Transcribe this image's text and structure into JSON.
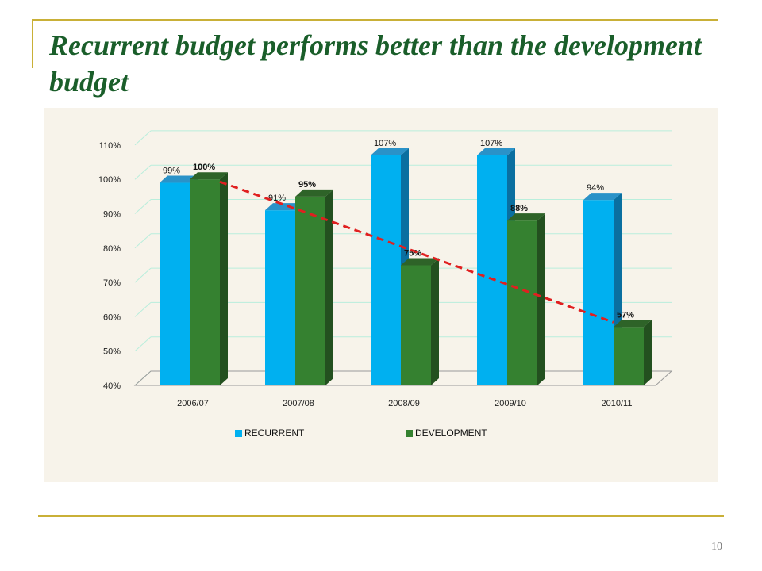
{
  "slide": {
    "title": "Recurrent budget performs better than the development budget",
    "page_number": "10"
  },
  "colors": {
    "accent_rule": "#c9b037",
    "title": "#1a5e2a",
    "panel_bg": "#f7f3ea",
    "recurrent_front": "#00b0f0",
    "recurrent_side": "#0a6fa0",
    "recurrent_top": "#2a92c8",
    "development_front": "#358130",
    "development_side": "#23501f",
    "development_top": "#2e6328",
    "trend_line": "#e02020",
    "gridline": "#b9eedc"
  },
  "chart_data": {
    "type": "bar",
    "style": "3d-clustered",
    "categories": [
      "2006/07",
      "2007/08",
      "2008/09",
      "2009/10",
      "2010/11"
    ],
    "series": [
      {
        "name": "RECURRENT",
        "values": [
          99,
          91,
          107,
          107,
          94
        ],
        "labels": [
          "99%",
          "91%",
          "107%",
          "107%",
          "94%"
        ]
      },
      {
        "name": "DEVELOPMENT",
        "values": [
          100,
          95,
          75,
          88,
          57
        ],
        "labels": [
          "100%",
          "95%",
          "75%",
          "88%",
          "57%"
        ]
      }
    ],
    "ylim": [
      40,
      110
    ],
    "yticks": [
      40,
      50,
      60,
      70,
      80,
      90,
      100,
      110
    ],
    "ytick_labels": [
      "40%",
      "50%",
      "60%",
      "70%",
      "80%",
      "90%",
      "100%",
      "110%"
    ],
    "grid": true,
    "legend_position": "bottom",
    "trend_line": {
      "style": "dashed",
      "series": "DEVELOPMENT",
      "from_category": "2006/07",
      "to_category": "2010/11"
    }
  }
}
